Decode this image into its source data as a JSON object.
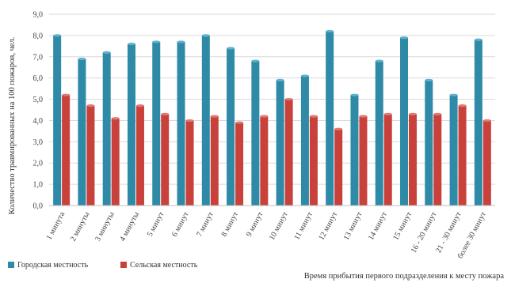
{
  "chart_data": {
    "type": "bar",
    "title": "",
    "xlabel": "Время прибытия первого подразделения к месту пожара",
    "ylabel": "Количество травмированных на 100 пожаров, чел.",
    "ylim": [
      0,
      9
    ],
    "yticks": [
      "0,0",
      "1,0",
      "2,0",
      "3,0",
      "4,0",
      "5,0",
      "6,0",
      "7,0",
      "8,0",
      "9,0"
    ],
    "grid": true,
    "legend_position": "bottom-left",
    "categories": [
      "1 минута",
      "2 минуты",
      "3 минуты",
      "4 минуты",
      "5 минут",
      "6 минут",
      "7 минут",
      "8 минут",
      "9 минут",
      "10 минут",
      "11 минут",
      "12 минут",
      "13 минут",
      "14 минут",
      "15 минут",
      "16 - 20 минут",
      "21 - 30 минут",
      "более 30 минут"
    ],
    "series": [
      {
        "name": "Городская местность",
        "color": "#2e8aa6",
        "values": [
          8.0,
          6.9,
          7.2,
          7.6,
          7.7,
          7.7,
          8.0,
          7.4,
          6.8,
          5.9,
          6.1,
          8.2,
          5.2,
          6.8,
          7.9,
          5.9,
          5.2,
          7.8
        ]
      },
      {
        "name": "Сельская местность",
        "color": "#c9413b",
        "values": [
          5.2,
          4.7,
          4.1,
          4.7,
          4.3,
          4.0,
          4.2,
          3.9,
          4.2,
          5.0,
          4.2,
          3.6,
          4.2,
          4.3,
          4.3,
          4.3,
          4.7,
          4.0
        ]
      }
    ]
  }
}
